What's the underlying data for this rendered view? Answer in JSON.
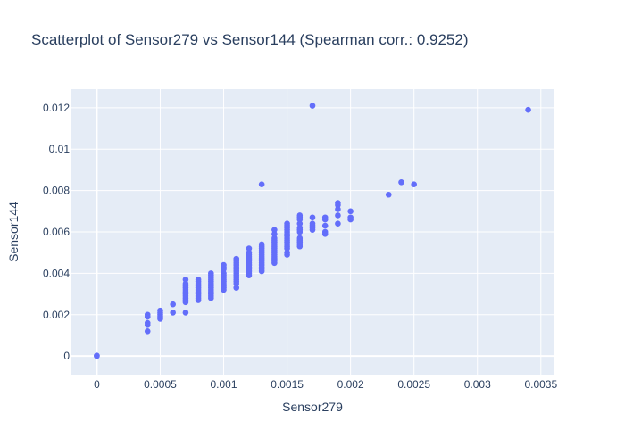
{
  "chart_data": {
    "type": "scatter",
    "title": "Scatterplot of Sensor279 vs Sensor144 (Spearman corr.: 0.9252)",
    "xlabel": "Sensor279",
    "ylabel": "Sensor144",
    "xlim": [
      -0.0002,
      0.0036
    ],
    "ylim": [
      -0.0009,
      0.0129
    ],
    "x_ticks": [
      0,
      0.0005,
      0.001,
      0.0015,
      0.002,
      0.0025,
      0.003,
      0.0035
    ],
    "x_tick_labels": [
      "0",
      "0.0005",
      "0.001",
      "0.0015",
      "0.002",
      "0.0025",
      "0.003",
      "0.0035"
    ],
    "y_ticks": [
      0,
      0.002,
      0.004,
      0.006,
      0.008,
      0.01,
      0.012
    ],
    "y_tick_labels": [
      "0",
      "0.002",
      "0.004",
      "0.006",
      "0.008",
      "0.01",
      "0.012"
    ],
    "grid": true,
    "colors": {
      "marker": "#636efa",
      "plot_bg": "#e5ecf6",
      "grid": "#ffffff",
      "text": "#2a3f5f"
    },
    "points": [
      [
        0,
        0
      ],
      [
        0,
        2e-05
      ],
      [
        0.0004,
        0.0012
      ],
      [
        0.0004,
        0.0015
      ],
      [
        0.0004,
        0.0016
      ],
      [
        0.0004,
        0.0019
      ],
      [
        0.0004,
        0.002
      ],
      [
        0.0005,
        0.0018
      ],
      [
        0.0005,
        0.0019
      ],
      [
        0.0005,
        0.002
      ],
      [
        0.0005,
        0.0021
      ],
      [
        0.0005,
        0.0022
      ],
      [
        0.0006,
        0.0021
      ],
      [
        0.0006,
        0.0025
      ],
      [
        0.0007,
        0.0021
      ],
      [
        0.0007,
        0.0026
      ],
      [
        0.0007,
        0.0027
      ],
      [
        0.0007,
        0.0028
      ],
      [
        0.0007,
        0.0029
      ],
      [
        0.0007,
        0.003
      ],
      [
        0.0007,
        0.0031
      ],
      [
        0.0007,
        0.0032
      ],
      [
        0.0007,
        0.0033
      ],
      [
        0.0007,
        0.0034
      ],
      [
        0.0007,
        0.0035
      ],
      [
        0.0007,
        0.0037
      ],
      [
        0.0008,
        0.0027
      ],
      [
        0.0008,
        0.0028
      ],
      [
        0.0008,
        0.0029
      ],
      [
        0.0008,
        0.003
      ],
      [
        0.0008,
        0.0031
      ],
      [
        0.0008,
        0.0032
      ],
      [
        0.0008,
        0.0033
      ],
      [
        0.0008,
        0.0034
      ],
      [
        0.0008,
        0.0035
      ],
      [
        0.0008,
        0.0036
      ],
      [
        0.0008,
        0.0037
      ],
      [
        0.0009,
        0.0028
      ],
      [
        0.0009,
        0.0029
      ],
      [
        0.0009,
        0.003
      ],
      [
        0.0009,
        0.0031
      ],
      [
        0.0009,
        0.0032
      ],
      [
        0.0009,
        0.0033
      ],
      [
        0.0009,
        0.0034
      ],
      [
        0.0009,
        0.0035
      ],
      [
        0.0009,
        0.0036
      ],
      [
        0.0009,
        0.0037
      ],
      [
        0.0009,
        0.0038
      ],
      [
        0.0009,
        0.0039
      ],
      [
        0.0009,
        0.004
      ],
      [
        0.001,
        0.0032
      ],
      [
        0.001,
        0.0033
      ],
      [
        0.001,
        0.0034
      ],
      [
        0.001,
        0.0035
      ],
      [
        0.001,
        0.0036
      ],
      [
        0.001,
        0.0037
      ],
      [
        0.001,
        0.0038
      ],
      [
        0.001,
        0.0039
      ],
      [
        0.001,
        0.004
      ],
      [
        0.001,
        0.0042
      ],
      [
        0.001,
        0.0043
      ],
      [
        0.001,
        0.0044
      ],
      [
        0.0011,
        0.0033
      ],
      [
        0.0011,
        0.0035
      ],
      [
        0.0011,
        0.0036
      ],
      [
        0.0011,
        0.0037
      ],
      [
        0.0011,
        0.0038
      ],
      [
        0.0011,
        0.0039
      ],
      [
        0.0011,
        0.004
      ],
      [
        0.0011,
        0.0041
      ],
      [
        0.0011,
        0.0042
      ],
      [
        0.0011,
        0.0043
      ],
      [
        0.0011,
        0.0044
      ],
      [
        0.0011,
        0.0045
      ],
      [
        0.0011,
        0.0046
      ],
      [
        0.0011,
        0.0047
      ],
      [
        0.0012,
        0.0039
      ],
      [
        0.0012,
        0.004
      ],
      [
        0.0012,
        0.0041
      ],
      [
        0.0012,
        0.0042
      ],
      [
        0.0012,
        0.0043
      ],
      [
        0.0012,
        0.0044
      ],
      [
        0.0012,
        0.0045
      ],
      [
        0.0012,
        0.0046
      ],
      [
        0.0012,
        0.0047
      ],
      [
        0.0012,
        0.0048
      ],
      [
        0.0012,
        0.0049
      ],
      [
        0.0012,
        0.005
      ],
      [
        0.0012,
        0.0052
      ],
      [
        0.0013,
        0.0041
      ],
      [
        0.0013,
        0.0042
      ],
      [
        0.0013,
        0.0043
      ],
      [
        0.0013,
        0.0044
      ],
      [
        0.0013,
        0.0045
      ],
      [
        0.0013,
        0.0046
      ],
      [
        0.0013,
        0.0047
      ],
      [
        0.0013,
        0.0048
      ],
      [
        0.0013,
        0.0049
      ],
      [
        0.0013,
        0.005
      ],
      [
        0.0013,
        0.0051
      ],
      [
        0.0013,
        0.0052
      ],
      [
        0.0013,
        0.0053
      ],
      [
        0.0013,
        0.0054
      ],
      [
        0.0013,
        0.0083
      ],
      [
        0.0014,
        0.0045
      ],
      [
        0.0014,
        0.0046
      ],
      [
        0.0014,
        0.0047
      ],
      [
        0.0014,
        0.0048
      ],
      [
        0.0014,
        0.0049
      ],
      [
        0.0014,
        0.005
      ],
      [
        0.0014,
        0.0051
      ],
      [
        0.0014,
        0.0052
      ],
      [
        0.0014,
        0.0053
      ],
      [
        0.0014,
        0.0054
      ],
      [
        0.0014,
        0.0055
      ],
      [
        0.0014,
        0.0056
      ],
      [
        0.0014,
        0.0057
      ],
      [
        0.0014,
        0.0059
      ],
      [
        0.0014,
        0.0061
      ],
      [
        0.0015,
        0.0049
      ],
      [
        0.0015,
        0.005
      ],
      [
        0.0015,
        0.0052
      ],
      [
        0.0015,
        0.0053
      ],
      [
        0.0015,
        0.0054
      ],
      [
        0.0015,
        0.0055
      ],
      [
        0.0015,
        0.0056
      ],
      [
        0.0015,
        0.0057
      ],
      [
        0.0015,
        0.0058
      ],
      [
        0.0015,
        0.0059
      ],
      [
        0.0015,
        0.006
      ],
      [
        0.0015,
        0.0061
      ],
      [
        0.0015,
        0.0062
      ],
      [
        0.0015,
        0.0063
      ],
      [
        0.0015,
        0.0064
      ],
      [
        0.0016,
        0.0053
      ],
      [
        0.0016,
        0.0054
      ],
      [
        0.0016,
        0.0055
      ],
      [
        0.0016,
        0.0056
      ],
      [
        0.0016,
        0.0057
      ],
      [
        0.0016,
        0.006
      ],
      [
        0.0016,
        0.0061
      ],
      [
        0.0016,
        0.0062
      ],
      [
        0.0016,
        0.0064
      ],
      [
        0.0016,
        0.0066
      ],
      [
        0.0016,
        0.0067
      ],
      [
        0.0016,
        0.0068
      ],
      [
        0.0017,
        0.0061
      ],
      [
        0.0017,
        0.0062
      ],
      [
        0.0017,
        0.0063
      ],
      [
        0.0017,
        0.0064
      ],
      [
        0.0017,
        0.0067
      ],
      [
        0.0017,
        0.0121
      ],
      [
        0.0018,
        0.0059
      ],
      [
        0.0018,
        0.006
      ],
      [
        0.0018,
        0.0063
      ],
      [
        0.0018,
        0.0066
      ],
      [
        0.0018,
        0.0067
      ],
      [
        0.0019,
        0.0064
      ],
      [
        0.0019,
        0.0068
      ],
      [
        0.0019,
        0.0071
      ],
      [
        0.0019,
        0.0073
      ],
      [
        0.0019,
        0.0074
      ],
      [
        0.002,
        0.0066
      ],
      [
        0.002,
        0.0067
      ],
      [
        0.002,
        0.007
      ],
      [
        0.0023,
        0.0078
      ],
      [
        0.0024,
        0.0084
      ],
      [
        0.0025,
        0.0083
      ],
      [
        0.0034,
        0.0119
      ]
    ]
  }
}
